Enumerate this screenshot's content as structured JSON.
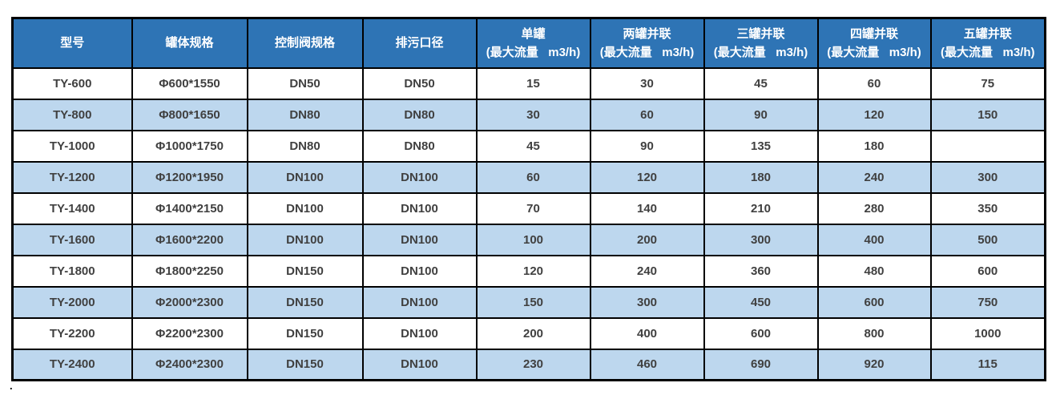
{
  "colors": {
    "header_bg": "#2E74B5",
    "header_text": "#FFFFFF",
    "stripe_bg": "#BDD7EE",
    "row_bg": "#FFFFFF",
    "border": "#000000",
    "body_text": "#404040"
  },
  "footnote": ".",
  "table": {
    "columns": [
      {
        "label": "型号",
        "sub": ""
      },
      {
        "label": "罐体规格",
        "sub": ""
      },
      {
        "label": "控制阀规格",
        "sub": ""
      },
      {
        "label": "排污口径",
        "sub": ""
      },
      {
        "label": "单罐",
        "sub": "(最大流量   m3/h)"
      },
      {
        "label": "两罐并联",
        "sub": "(最大流量   m3/h)"
      },
      {
        "label": "三罐并联",
        "sub": "(最大流量   m3/h)"
      },
      {
        "label": "四罐并联",
        "sub": "(最大流量   m3/h)"
      },
      {
        "label": "五罐并联",
        "sub": "(最大流量   m3/h)"
      }
    ],
    "rows": [
      [
        "TY-600",
        "Φ600*1550",
        "DN50",
        "DN50",
        "15",
        "30",
        "45",
        "60",
        "75"
      ],
      [
        "TY-800",
        "Φ800*1650",
        "DN80",
        "DN80",
        "30",
        "60",
        "90",
        "120",
        "150"
      ],
      [
        "TY-1000",
        "Φ1000*1750",
        "DN80",
        "DN80",
        "45",
        "90",
        "135",
        "180",
        ""
      ],
      [
        "TY-1200",
        "Φ1200*1950",
        "DN100",
        "DN100",
        "60",
        "120",
        "180",
        "240",
        "300"
      ],
      [
        "TY-1400",
        "Φ1400*2150",
        "DN100",
        "DN100",
        "70",
        "140",
        "210",
        "280",
        "350"
      ],
      [
        "TY-1600",
        "Φ1600*2200",
        "DN100",
        "DN100",
        "100",
        "200",
        "300",
        "400",
        "500"
      ],
      [
        "TY-1800",
        "Φ1800*2250",
        "DN150",
        "DN100",
        "120",
        "240",
        "360",
        "480",
        "600"
      ],
      [
        "TY-2000",
        "Φ2000*2300",
        "DN150",
        "DN100",
        "150",
        "300",
        "450",
        "600",
        "750"
      ],
      [
        "TY-2200",
        "Φ2200*2300",
        "DN150",
        "DN100",
        "200",
        "400",
        "600",
        "800",
        "1000"
      ],
      [
        "TY-2400",
        "Φ2400*2300",
        "DN150",
        "DN100",
        "230",
        "460",
        "690",
        "920",
        "115"
      ]
    ]
  }
}
